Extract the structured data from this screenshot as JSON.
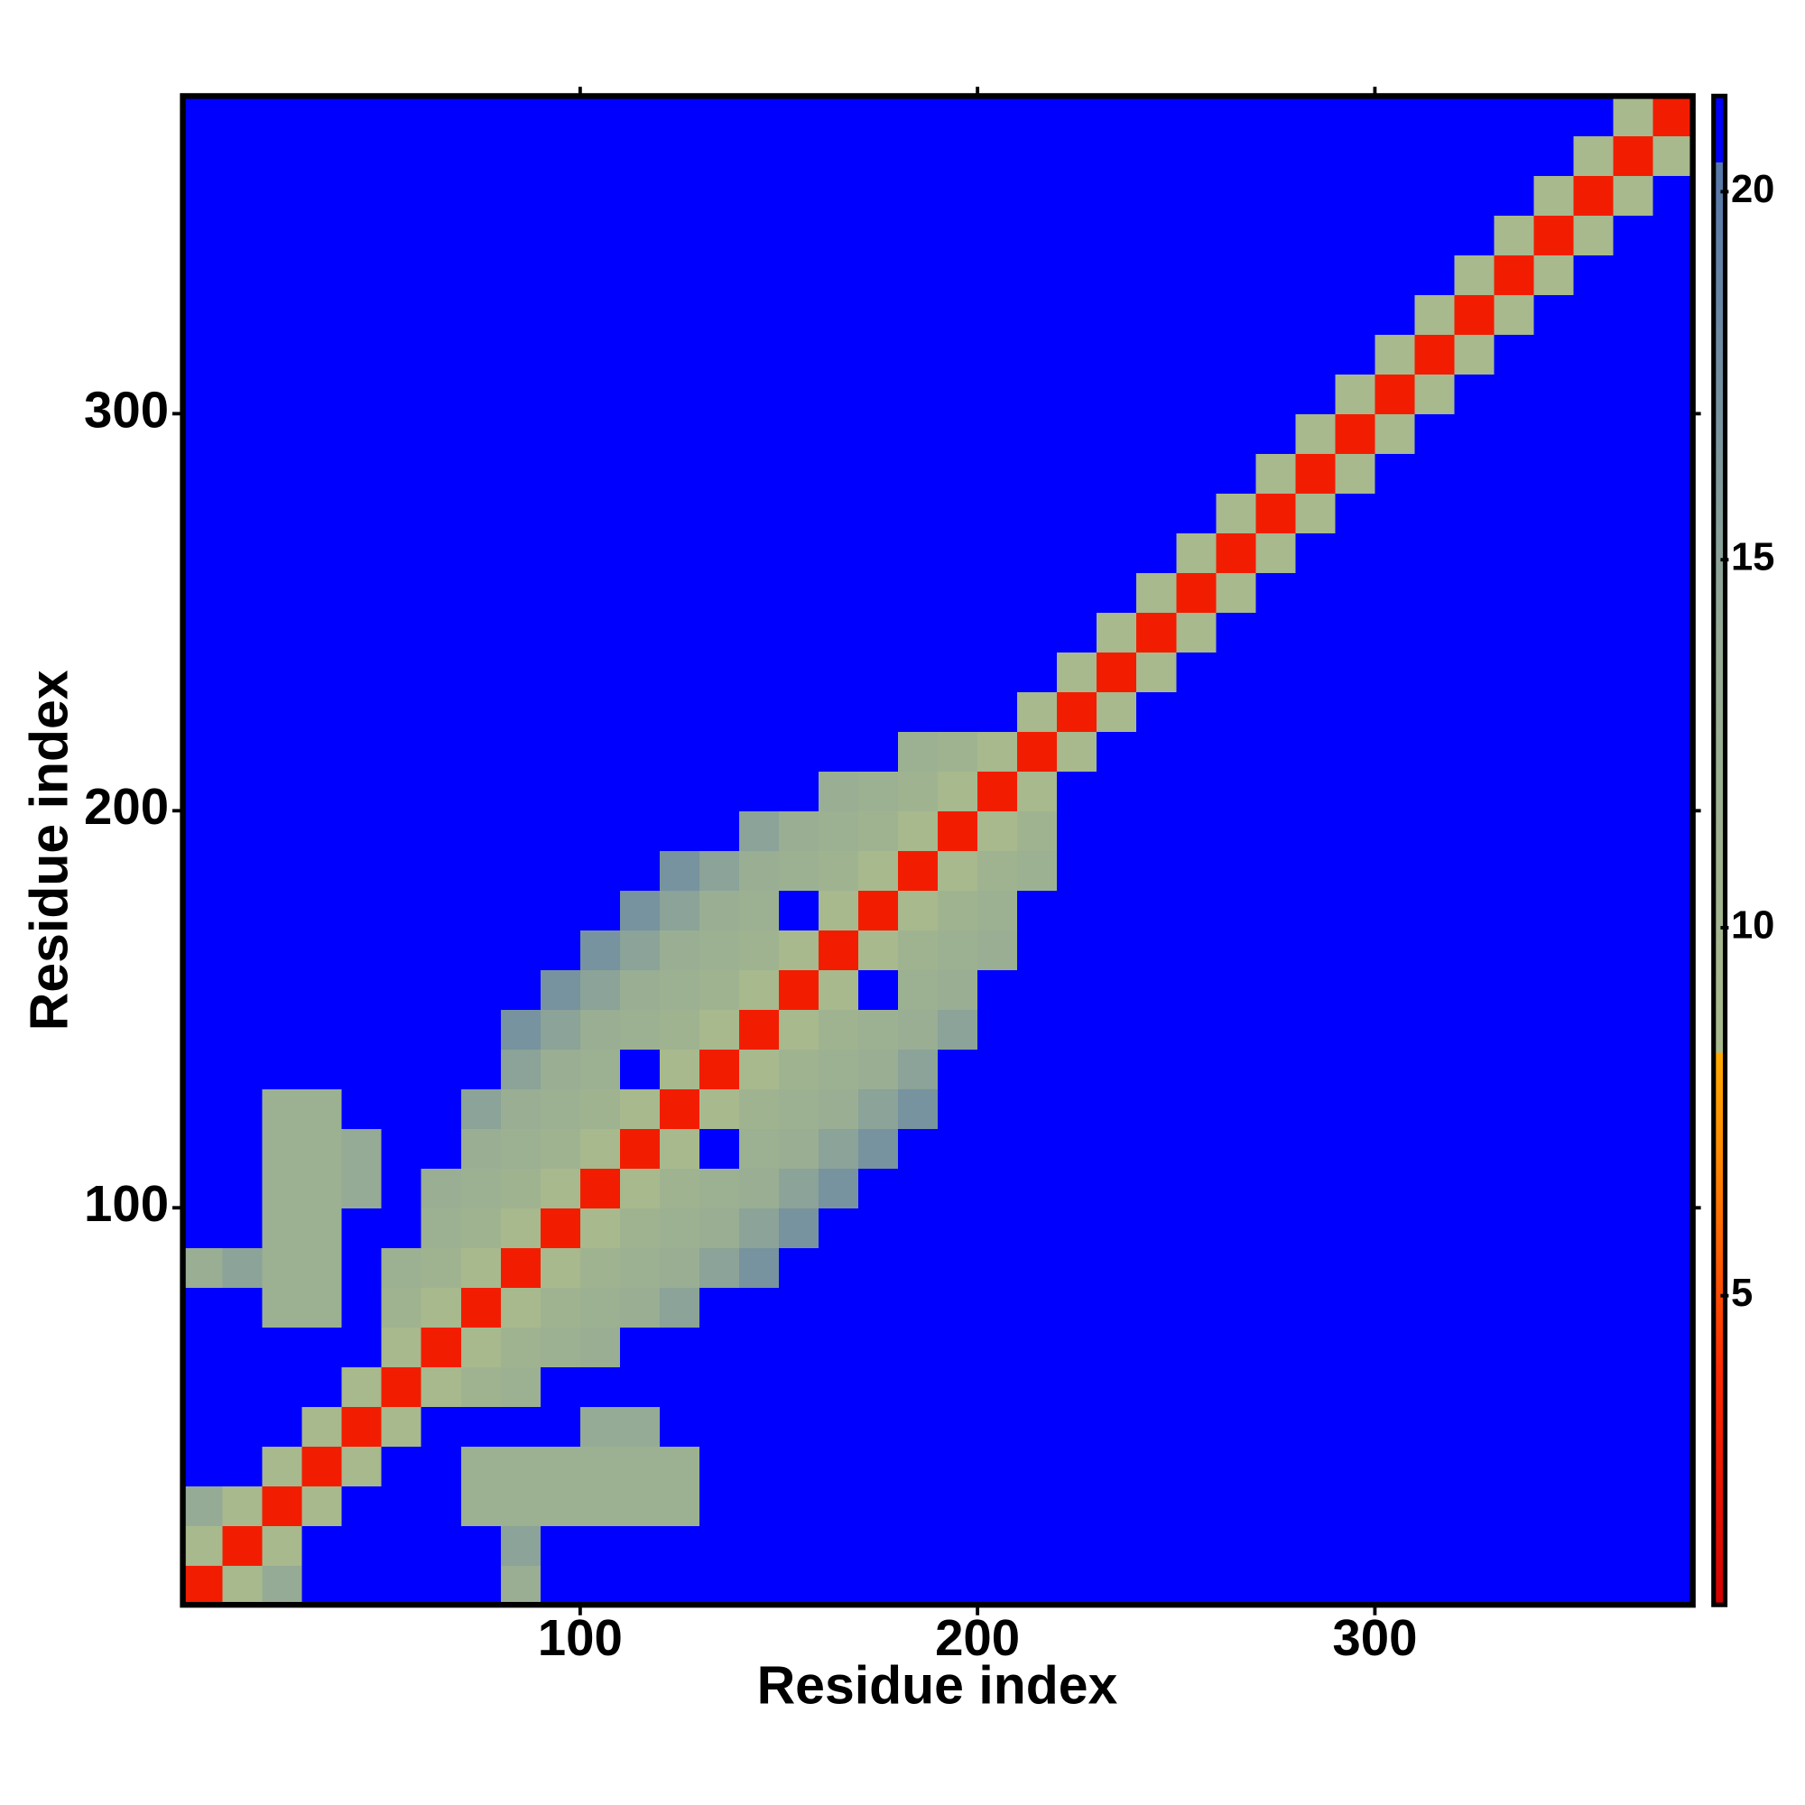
{
  "chart_data": {
    "type": "heatmap",
    "xlabel": "Residue index",
    "ylabel": "Residue index",
    "xlim": [
      0,
      380
    ],
    "ylim": [
      0,
      380
    ],
    "xticks": [
      100,
      200,
      300
    ],
    "yticks": [
      100,
      200,
      300
    ],
    "zlim": [
      0.8,
      21.3
    ],
    "zticks": [
      5,
      10,
      15,
      20
    ],
    "colorscale": [
      [
        0.8,
        "#d40000"
      ],
      [
        4,
        "#ff2a00"
      ],
      [
        7,
        "#ff8c00"
      ],
      [
        8.3,
        "#ffaa00"
      ],
      [
        8.3,
        "#a9bb8c"
      ],
      [
        14,
        "#95ab95"
      ],
      [
        20.4,
        "#5577aa"
      ],
      [
        20.4,
        "#0000ff"
      ],
      [
        21.3,
        "#0000ff"
      ]
    ],
    "z": [
      [
        3,
        9,
        14,
        21,
        21,
        21,
        21,
        21,
        13,
        21,
        21,
        21,
        21,
        21,
        21,
        21,
        21,
        21,
        21,
        21,
        21,
        21,
        21,
        21,
        21,
        21,
        21,
        21,
        21,
        21,
        21,
        21,
        21,
        21,
        21,
        21,
        21,
        21
      ],
      [
        9,
        3,
        9,
        21,
        21,
        21,
        21,
        21,
        15,
        21,
        21,
        21,
        21,
        21,
        21,
        21,
        21,
        21,
        21,
        21,
        21,
        21,
        21,
        21,
        21,
        21,
        21,
        21,
        21,
        21,
        21,
        21,
        21,
        21,
        21,
        21,
        21,
        21
      ],
      [
        14,
        9,
        3,
        9,
        21,
        21,
        21,
        12,
        12,
        12,
        12,
        12,
        12,
        21,
        21,
        21,
        21,
        21,
        21,
        21,
        21,
        21,
        21,
        21,
        21,
        21,
        21,
        21,
        21,
        21,
        21,
        21,
        21,
        21,
        21,
        21,
        21,
        21
      ],
      [
        21,
        21,
        9,
        3,
        9,
        21,
        21,
        12,
        12,
        12,
        12,
        12,
        12,
        21,
        21,
        21,
        21,
        21,
        21,
        21,
        21,
        21,
        21,
        21,
        21,
        21,
        21,
        21,
        21,
        21,
        21,
        21,
        21,
        21,
        21,
        21,
        21,
        21
      ],
      [
        21,
        21,
        21,
        9,
        3,
        9,
        21,
        21,
        21,
        21,
        14,
        14,
        21,
        21,
        21,
        21,
        21,
        21,
        21,
        21,
        21,
        21,
        21,
        21,
        21,
        21,
        21,
        21,
        21,
        21,
        21,
        21,
        21,
        21,
        21,
        21,
        21,
        21
      ],
      [
        21,
        21,
        21,
        21,
        9,
        3,
        9,
        11,
        12,
        21,
        21,
        21,
        21,
        21,
        21,
        21,
        21,
        21,
        21,
        21,
        21,
        21,
        21,
        21,
        21,
        21,
        21,
        21,
        21,
        21,
        21,
        21,
        21,
        21,
        21,
        21,
        21,
        21
      ],
      [
        21,
        21,
        21,
        21,
        21,
        9,
        3,
        9,
        11,
        12,
        13,
        21,
        21,
        21,
        21,
        21,
        21,
        21,
        21,
        21,
        21,
        21,
        21,
        21,
        21,
        21,
        21,
        21,
        21,
        21,
        21,
        21,
        21,
        21,
        21,
        21,
        21,
        21
      ],
      [
        21,
        21,
        12,
        12,
        21,
        11,
        9,
        3,
        9,
        11,
        12,
        13,
        15,
        21,
        21,
        21,
        21,
        21,
        21,
        21,
        21,
        21,
        21,
        21,
        21,
        21,
        21,
        21,
        21,
        21,
        21,
        21,
        21,
        21,
        21,
        21,
        21,
        21
      ],
      [
        13,
        15,
        12,
        12,
        21,
        12,
        11,
        9,
        3,
        9,
        11,
        12,
        13,
        15,
        17,
        21,
        21,
        21,
        21,
        21,
        21,
        21,
        21,
        21,
        21,
        21,
        21,
        21,
        21,
        21,
        21,
        21,
        21,
        21,
        21,
        21,
        21,
        21
      ],
      [
        21,
        21,
        12,
        12,
        21,
        21,
        12,
        11,
        9,
        3,
        9,
        11,
        12,
        13,
        15,
        17,
        21,
        21,
        21,
        21,
        21,
        21,
        21,
        21,
        21,
        21,
        21,
        21,
        21,
        21,
        21,
        21,
        21,
        21,
        21,
        21,
        21,
        21
      ],
      [
        21,
        21,
        12,
        12,
        14,
        21,
        13,
        12,
        11,
        9,
        3,
        9,
        11,
        12,
        13,
        15,
        17,
        21,
        21,
        21,
        21,
        21,
        21,
        21,
        21,
        21,
        21,
        21,
        21,
        21,
        21,
        21,
        21,
        21,
        21,
        21,
        21,
        21
      ],
      [
        21,
        21,
        12,
        12,
        14,
        21,
        21,
        13,
        12,
        11,
        9,
        3,
        9,
        21,
        12,
        13,
        15,
        17,
        21,
        21,
        21,
        21,
        21,
        21,
        21,
        21,
        21,
        21,
        21,
        21,
        21,
        21,
        21,
        21,
        21,
        21,
        21,
        21
      ],
      [
        21,
        21,
        12,
        12,
        21,
        21,
        21,
        15,
        13,
        12,
        11,
        9,
        3,
        9,
        11,
        12,
        13,
        15,
        17,
        21,
        21,
        21,
        21,
        21,
        21,
        21,
        21,
        21,
        21,
        21,
        21,
        21,
        21,
        21,
        21,
        21,
        21,
        21
      ],
      [
        21,
        21,
        21,
        21,
        21,
        21,
        21,
        21,
        15,
        13,
        12,
        21,
        9,
        3,
        9,
        11,
        12,
        13,
        15,
        21,
        21,
        21,
        21,
        21,
        21,
        21,
        21,
        21,
        21,
        21,
        21,
        21,
        21,
        21,
        21,
        21,
        21,
        21
      ],
      [
        21,
        21,
        21,
        21,
        21,
        21,
        21,
        21,
        17,
        15,
        13,
        12,
        11,
        9,
        3,
        9,
        11,
        12,
        13,
        15,
        21,
        21,
        21,
        21,
        21,
        21,
        21,
        21,
        21,
        21,
        21,
        21,
        21,
        21,
        21,
        21,
        21,
        21
      ],
      [
        21,
        21,
        21,
        21,
        21,
        21,
        21,
        21,
        21,
        17,
        15,
        13,
        12,
        11,
        9,
        3,
        9,
        21,
        12,
        13,
        21,
        21,
        21,
        21,
        21,
        21,
        21,
        21,
        21,
        21,
        21,
        21,
        21,
        21,
        21,
        21,
        21,
        21
      ],
      [
        21,
        21,
        21,
        21,
        21,
        21,
        21,
        21,
        21,
        21,
        17,
        15,
        13,
        12,
        11,
        9,
        3,
        9,
        11,
        12,
        13,
        21,
        21,
        21,
        21,
        21,
        21,
        21,
        21,
        21,
        21,
        21,
        21,
        21,
        21,
        21,
        21,
        21
      ],
      [
        21,
        21,
        21,
        21,
        21,
        21,
        21,
        21,
        21,
        21,
        21,
        17,
        15,
        13,
        12,
        21,
        9,
        3,
        9,
        11,
        12,
        21,
        21,
        21,
        21,
        21,
        21,
        21,
        21,
        21,
        21,
        21,
        21,
        21,
        21,
        21,
        21,
        21
      ],
      [
        21,
        21,
        21,
        21,
        21,
        21,
        21,
        21,
        21,
        21,
        21,
        21,
        17,
        15,
        13,
        12,
        11,
        9,
        3,
        9,
        11,
        12,
        21,
        21,
        21,
        21,
        21,
        21,
        21,
        21,
        21,
        21,
        21,
        21,
        21,
        21,
        21,
        21
      ],
      [
        21,
        21,
        21,
        21,
        21,
        21,
        21,
        21,
        21,
        21,
        21,
        21,
        21,
        21,
        15,
        13,
        12,
        11,
        9,
        3,
        9,
        11,
        21,
        21,
        21,
        21,
        21,
        21,
        21,
        21,
        21,
        21,
        21,
        21,
        21,
        21,
        21,
        21
      ],
      [
        21,
        21,
        21,
        21,
        21,
        21,
        21,
        21,
        21,
        21,
        21,
        21,
        21,
        21,
        21,
        21,
        13,
        12,
        11,
        9,
        3,
        9,
        21,
        21,
        21,
        21,
        21,
        21,
        21,
        21,
        21,
        21,
        21,
        21,
        21,
        21,
        21,
        21
      ],
      [
        21,
        21,
        21,
        21,
        21,
        21,
        21,
        21,
        21,
        21,
        21,
        21,
        21,
        21,
        21,
        21,
        21,
        21,
        12,
        11,
        9,
        3,
        9,
        21,
        21,
        21,
        21,
        21,
        21,
        21,
        21,
        21,
        21,
        21,
        21,
        21,
        21,
        21
      ],
      [
        21,
        21,
        21,
        21,
        21,
        21,
        21,
        21,
        21,
        21,
        21,
        21,
        21,
        21,
        21,
        21,
        21,
        21,
        21,
        21,
        21,
        9,
        3,
        9,
        21,
        21,
        21,
        21,
        21,
        21,
        21,
        21,
        21,
        21,
        21,
        21,
        21,
        21
      ],
      [
        21,
        21,
        21,
        21,
        21,
        21,
        21,
        21,
        21,
        21,
        21,
        21,
        21,
        21,
        21,
        21,
        21,
        21,
        21,
        21,
        21,
        21,
        9,
        3,
        9,
        21,
        21,
        21,
        21,
        21,
        21,
        21,
        21,
        21,
        21,
        21,
        21,
        21
      ],
      [
        21,
        21,
        21,
        21,
        21,
        21,
        21,
        21,
        21,
        21,
        21,
        21,
        21,
        21,
        21,
        21,
        21,
        21,
        21,
        21,
        21,
        21,
        21,
        9,
        3,
        9,
        21,
        21,
        21,
        21,
        21,
        21,
        21,
        21,
        21,
        21,
        21,
        21
      ],
      [
        21,
        21,
        21,
        21,
        21,
        21,
        21,
        21,
        21,
        21,
        21,
        21,
        21,
        21,
        21,
        21,
        21,
        21,
        21,
        21,
        21,
        21,
        21,
        21,
        9,
        3,
        9,
        21,
        21,
        21,
        21,
        21,
        21,
        21,
        21,
        21,
        21,
        21
      ],
      [
        21,
        21,
        21,
        21,
        21,
        21,
        21,
        21,
        21,
        21,
        21,
        21,
        21,
        21,
        21,
        21,
        21,
        21,
        21,
        21,
        21,
        21,
        21,
        21,
        21,
        9,
        3,
        9,
        21,
        21,
        21,
        21,
        21,
        21,
        21,
        21,
        21,
        21
      ],
      [
        21,
        21,
        21,
        21,
        21,
        21,
        21,
        21,
        21,
        21,
        21,
        21,
        21,
        21,
        21,
        21,
        21,
        21,
        21,
        21,
        21,
        21,
        21,
        21,
        21,
        21,
        9,
        3,
        9,
        21,
        21,
        21,
        21,
        21,
        21,
        21,
        21,
        21
      ],
      [
        21,
        21,
        21,
        21,
        21,
        21,
        21,
        21,
        21,
        21,
        21,
        21,
        21,
        21,
        21,
        21,
        21,
        21,
        21,
        21,
        21,
        21,
        21,
        21,
        21,
        21,
        21,
        9,
        3,
        9,
        21,
        21,
        21,
        21,
        21,
        21,
        21,
        21
      ],
      [
        21,
        21,
        21,
        21,
        21,
        21,
        21,
        21,
        21,
        21,
        21,
        21,
        21,
        21,
        21,
        21,
        21,
        21,
        21,
        21,
        21,
        21,
        21,
        21,
        21,
        21,
        21,
        21,
        9,
        3,
        9,
        21,
        21,
        21,
        21,
        21,
        21,
        21
      ],
      [
        21,
        21,
        21,
        21,
        21,
        21,
        21,
        21,
        21,
        21,
        21,
        21,
        21,
        21,
        21,
        21,
        21,
        21,
        21,
        21,
        21,
        21,
        21,
        21,
        21,
        21,
        21,
        21,
        21,
        9,
        3,
        9,
        21,
        21,
        21,
        21,
        21,
        21
      ],
      [
        21,
        21,
        21,
        21,
        21,
        21,
        21,
        21,
        21,
        21,
        21,
        21,
        21,
        21,
        21,
        21,
        21,
        21,
        21,
        21,
        21,
        21,
        21,
        21,
        21,
        21,
        21,
        21,
        21,
        21,
        9,
        3,
        9,
        21,
        21,
        21,
        21,
        21
      ],
      [
        21,
        21,
        21,
        21,
        21,
        21,
        21,
        21,
        21,
        21,
        21,
        21,
        21,
        21,
        21,
        21,
        21,
        21,
        21,
        21,
        21,
        21,
        21,
        21,
        21,
        21,
        21,
        21,
        21,
        21,
        21,
        9,
        3,
        9,
        21,
        21,
        21,
        21
      ],
      [
        21,
        21,
        21,
        21,
        21,
        21,
        21,
        21,
        21,
        21,
        21,
        21,
        21,
        21,
        21,
        21,
        21,
        21,
        21,
        21,
        21,
        21,
        21,
        21,
        21,
        21,
        21,
        21,
        21,
        21,
        21,
        21,
        9,
        3,
        9,
        21,
        21,
        21
      ],
      [
        21,
        21,
        21,
        21,
        21,
        21,
        21,
        21,
        21,
        21,
        21,
        21,
        21,
        21,
        21,
        21,
        21,
        21,
        21,
        21,
        21,
        21,
        21,
        21,
        21,
        21,
        21,
        21,
        21,
        21,
        21,
        21,
        21,
        9,
        3,
        9,
        21,
        21
      ],
      [
        21,
        21,
        21,
        21,
        21,
        21,
        21,
        21,
        21,
        21,
        21,
        21,
        21,
        21,
        21,
        21,
        21,
        21,
        21,
        21,
        21,
        21,
        21,
        21,
        21,
        21,
        21,
        21,
        21,
        21,
        21,
        21,
        21,
        21,
        9,
        3,
        9,
        21
      ],
      [
        21,
        21,
        21,
        21,
        21,
        21,
        21,
        21,
        21,
        21,
        21,
        21,
        21,
        21,
        21,
        21,
        21,
        21,
        21,
        21,
        21,
        21,
        21,
        21,
        21,
        21,
        21,
        21,
        21,
        21,
        21,
        21,
        21,
        21,
        21,
        9,
        3,
        9
      ],
      [
        21,
        21,
        21,
        21,
        21,
        21,
        21,
        21,
        21,
        21,
        21,
        21,
        21,
        21,
        21,
        21,
        21,
        21,
        21,
        21,
        21,
        21,
        21,
        21,
        21,
        21,
        21,
        21,
        21,
        21,
        21,
        21,
        21,
        21,
        21,
        21,
        9,
        3
      ]
    ]
  }
}
